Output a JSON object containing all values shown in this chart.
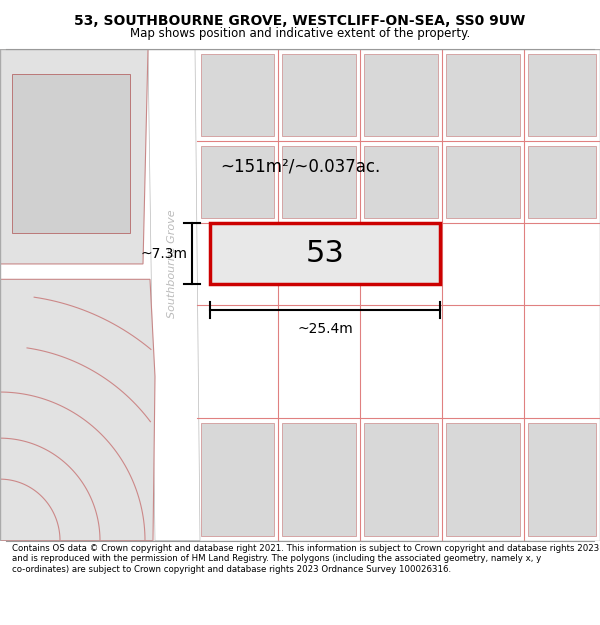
{
  "title_line1": "53, SOUTHBOURNE GROVE, WESTCLIFF-ON-SEA, SS0 9UW",
  "title_line2": "Map shows position and indicative extent of the property.",
  "footer_text": "Contains OS data © Crown copyright and database right 2021. This information is subject to Crown copyright and database rights 2023 and is reproduced with the permission of HM Land Registry. The polygons (including the associated geometry, namely x, y co-ordinates) are subject to Crown copyright and database rights 2023 Ordnance Survey 100026316.",
  "map_bg": "#ebebeb",
  "road_color": "#ffffff",
  "highlight_color": "#cc0000",
  "street_name": "Southbourne Grove",
  "area_label": "~151m²/~0.037ac.",
  "number_label": "53",
  "width_label": "~25.4m",
  "height_label": "~7.3m",
  "plot_line_color": "#e08080",
  "block_fill": "#d8d8d8",
  "block_edge": "#cc8888"
}
